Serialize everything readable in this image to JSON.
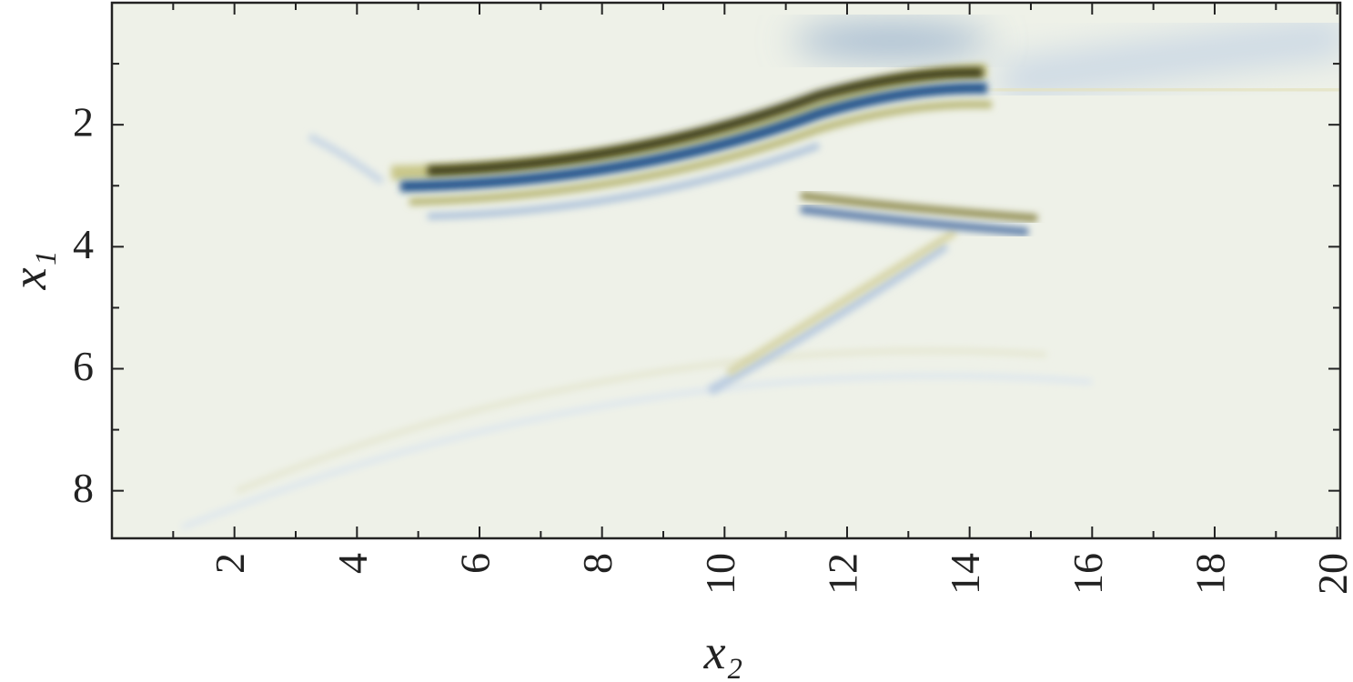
{
  "chart_data": {
    "type": "image",
    "xlabel": "x₂",
    "ylabel": "x₁",
    "xlim": [
      0,
      20.05
    ],
    "ylim": [
      0,
      8.78
    ],
    "y_inverted": true,
    "xticks": [
      2,
      4,
      6,
      8,
      10,
      12,
      14,
      16,
      18,
      20
    ],
    "yticks": [
      2,
      4,
      6,
      8
    ],
    "xminorticks": [
      1,
      3,
      5,
      7,
      9,
      11,
      13,
      15,
      17,
      19
    ],
    "yminorticks": [
      1,
      3,
      5,
      7
    ]
  }
}
